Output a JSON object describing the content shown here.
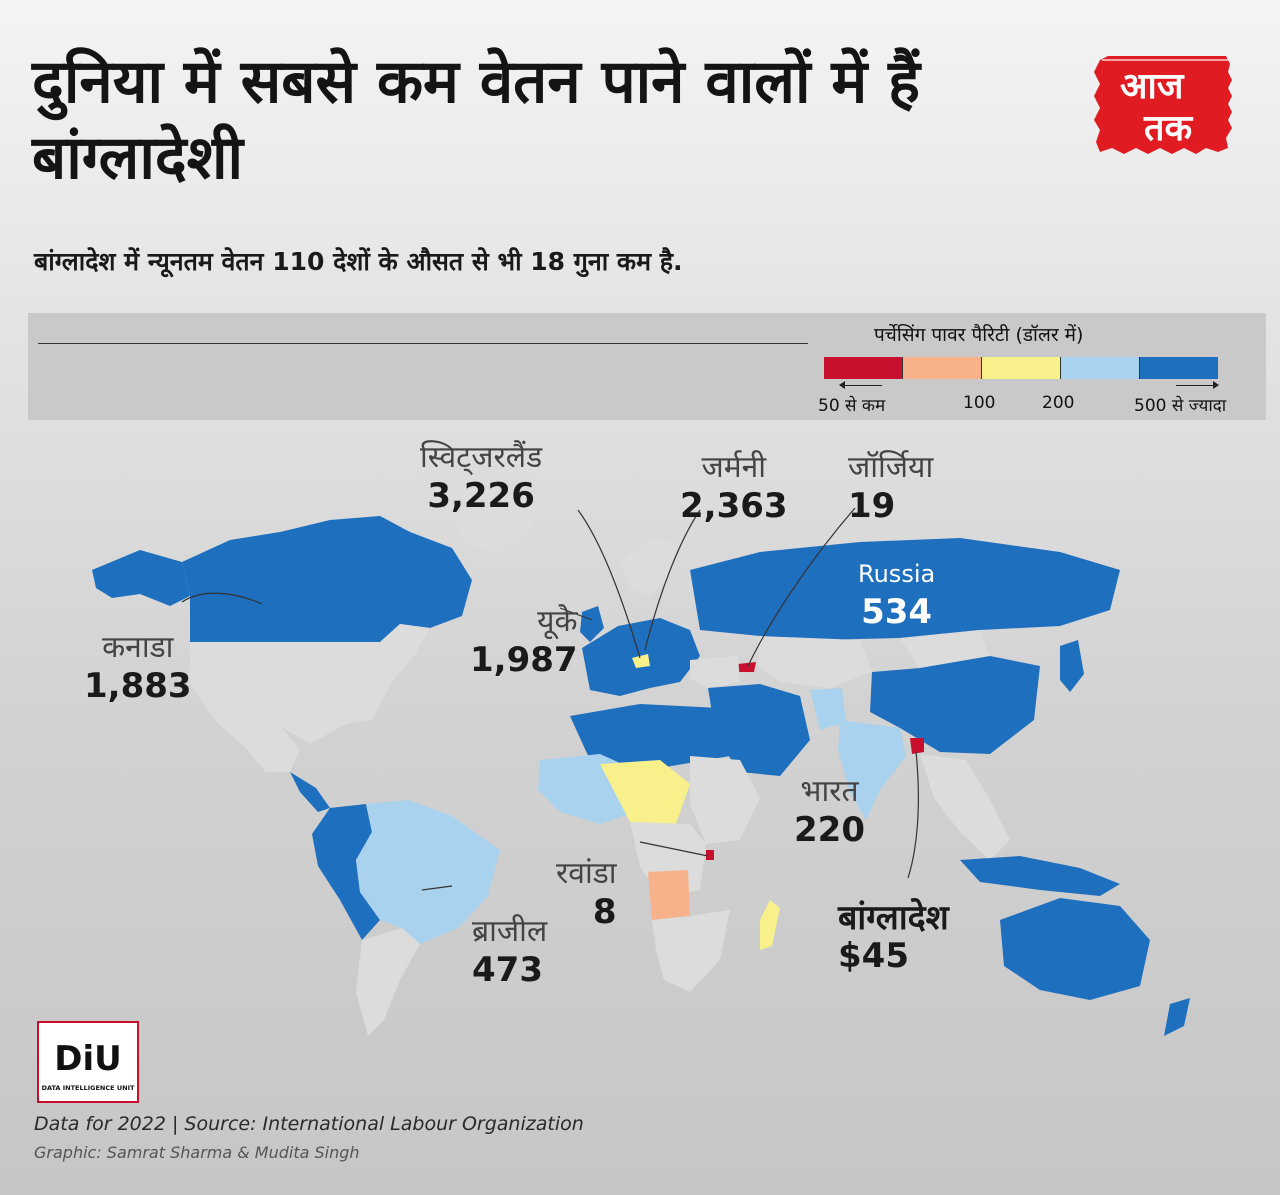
{
  "header": {
    "title": "दुनिया में सबसे कम वेतन पाने वालों में हैं बांग्लादेशी",
    "subtitle": "बांग्लादेश में न्यूनतम वेतन 110 देशों के औसत से भी 18 गुना कम है."
  },
  "brand": {
    "logo_line1": "आज",
    "logo_line2": "तक",
    "icon": "aajtak-logo"
  },
  "legend": {
    "title": "पर्चेसिंग पावर पैरिटी (डॉलर में)",
    "bins": [
      {
        "label": "50 से कम",
        "color": "#c8102e"
      },
      {
        "label": "100",
        "color": "#f7b28b"
      },
      {
        "label": "200",
        "color": "#f8f08a"
      },
      {
        "label": "",
        "color": "#a9d2ee"
      },
      {
        "label": "500 से ज्यादा",
        "color": "#1f6fbf"
      }
    ],
    "no_data_color": "#dcdcdc"
  },
  "map": {
    "callouts": [
      {
        "name": "स्विट्जरलैंड",
        "value": "3,226"
      },
      {
        "name": "जर्मनी",
        "value": "2,363"
      },
      {
        "name": "जॉर्जिया",
        "value": "19"
      },
      {
        "name": "Russia",
        "value": "534"
      },
      {
        "name": "यूके",
        "value": "1,987"
      },
      {
        "name": "कनाडा",
        "value": "1,883"
      },
      {
        "name": "भारत",
        "value": "220"
      },
      {
        "name": "रवांडा",
        "value": "8"
      },
      {
        "name": "ब्राजील",
        "value": "473"
      },
      {
        "name": "बांग्लादेश",
        "value": "$45"
      }
    ]
  },
  "footer": {
    "diu_logo_text": "DiU",
    "diu_logo_subtext": "DATA INTELLIGENCE UNIT",
    "source": "Data for 2022  |  Source: International Labour Organization",
    "credit": "Graphic: Samrat Sharma & Mudita Singh"
  }
}
